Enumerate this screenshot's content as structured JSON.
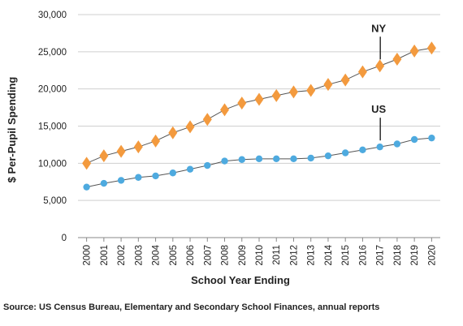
{
  "chart_data": {
    "type": "line",
    "title": "",
    "xlabel": "School Year Ending",
    "ylabel": "$ Per-Pupil Spending",
    "x": [
      "2000",
      "2001",
      "2002",
      "2003",
      "2004",
      "2005",
      "2006",
      "2007",
      "2008",
      "2009",
      "2010",
      "2011",
      "2012",
      "2013",
      "2014",
      "2015",
      "2016",
      "2017",
      "2018",
      "2019",
      "2020"
    ],
    "ylim": [
      0,
      30000
    ],
    "yticks": [
      0,
      5000,
      10000,
      15000,
      20000,
      25000,
      30000
    ],
    "ytick_labels": [
      "0",
      "5,000",
      "10,000",
      "15,000",
      "20,000",
      "25,000",
      "30,000"
    ],
    "grid": true,
    "legend": "none",
    "series": [
      {
        "name": "NY",
        "marker": "diamond",
        "color": "#f39a3e",
        "values": [
          10000,
          11000,
          11600,
          12200,
          13000,
          14100,
          14900,
          15900,
          17200,
          18100,
          18600,
          19100,
          19600,
          19800,
          20600,
          21200,
          22300,
          23100,
          24000,
          25100,
          25500
        ]
      },
      {
        "name": "US",
        "marker": "circle",
        "color": "#4eaadf",
        "values": [
          6800,
          7300,
          7700,
          8100,
          8300,
          8700,
          9200,
          9700,
          10300,
          10500,
          10600,
          10600,
          10600,
          10700,
          11000,
          11400,
          11800,
          12200,
          12600,
          13200,
          13400
        ]
      }
    ],
    "annotations": [
      {
        "text": "NY",
        "x": "2017",
        "series": "NY"
      },
      {
        "text": "US",
        "x": "2017",
        "series": "US"
      }
    ],
    "source": "Source: US Census Bureau, Elementary and Secondary School Finances, annual reports"
  }
}
